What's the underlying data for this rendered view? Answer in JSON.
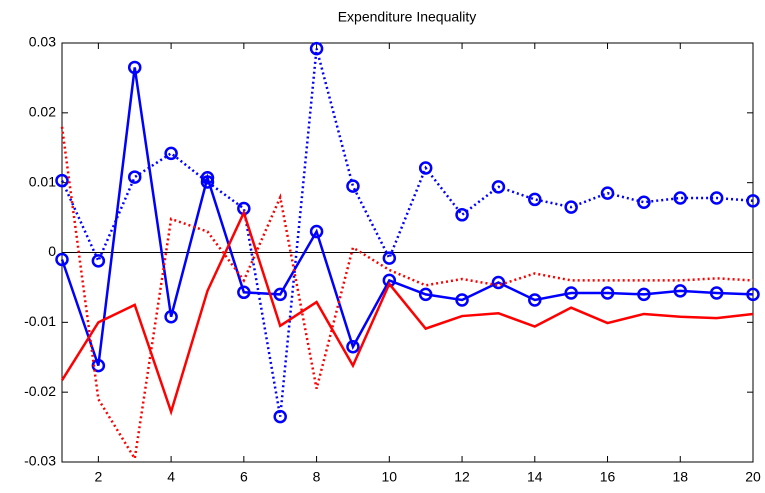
{
  "chart_data": {
    "type": "line",
    "title": "Expenditure Inequality",
    "x": [
      1,
      2,
      3,
      4,
      5,
      6,
      7,
      8,
      9,
      10,
      11,
      12,
      13,
      14,
      15,
      16,
      17,
      18,
      19,
      20
    ],
    "xlim": [
      1,
      20
    ],
    "xticks": [
      2,
      4,
      6,
      8,
      10,
      12,
      14,
      16,
      18,
      20
    ],
    "ylim": [
      -0.03,
      0.03
    ],
    "yticks": [
      -0.03,
      -0.02,
      -0.01,
      0,
      0.01,
      0.02,
      0.03
    ],
    "hline": 0,
    "series": [
      {
        "color": "#0000ff",
        "style": "solid",
        "marker": "circle",
        "values": [
          -0.001,
          -0.0162,
          0.0265,
          -0.0092,
          0.0107,
          -0.0057,
          -0.006,
          0.003,
          -0.0135,
          -0.004,
          -0.006,
          -0.0068,
          -0.0043,
          -0.0068,
          -0.0058,
          -0.0058,
          -0.006,
          -0.0055,
          -0.0058,
          -0.006
        ]
      },
      {
        "color": "#0000ff",
        "style": "dotted",
        "marker": "circle",
        "values": [
          0.0103,
          -0.0012,
          0.0108,
          0.0142,
          0.0101,
          0.0063,
          -0.0235,
          0.0292,
          0.0095,
          -0.0008,
          0.0121,
          0.0054,
          0.0094,
          0.0076,
          0.0065,
          0.0085,
          0.0072,
          0.0078,
          0.0078,
          0.0074
        ]
      },
      {
        "color": "#ff0000",
        "style": "solid",
        "marker": "none",
        "values": [
          -0.0183,
          -0.01,
          -0.0075,
          -0.0228,
          -0.0055,
          0.0057,
          -0.0105,
          -0.0071,
          -0.0162,
          -0.0045,
          -0.0109,
          -0.0091,
          -0.0087,
          -0.0106,
          -0.0079,
          -0.0101,
          -0.0088,
          -0.0092,
          -0.0094,
          -0.0088
        ]
      },
      {
        "color": "#ff0000",
        "style": "dotted",
        "marker": "none",
        "values": [
          0.018,
          -0.021,
          -0.0295,
          0.0048,
          0.003,
          -0.004,
          0.0079,
          -0.0195,
          0.0007,
          -0.0025,
          -0.0047,
          -0.0038,
          -0.0047,
          -0.003,
          -0.004,
          -0.004,
          -0.004,
          -0.004,
          -0.0037,
          -0.004
        ]
      }
    ]
  }
}
